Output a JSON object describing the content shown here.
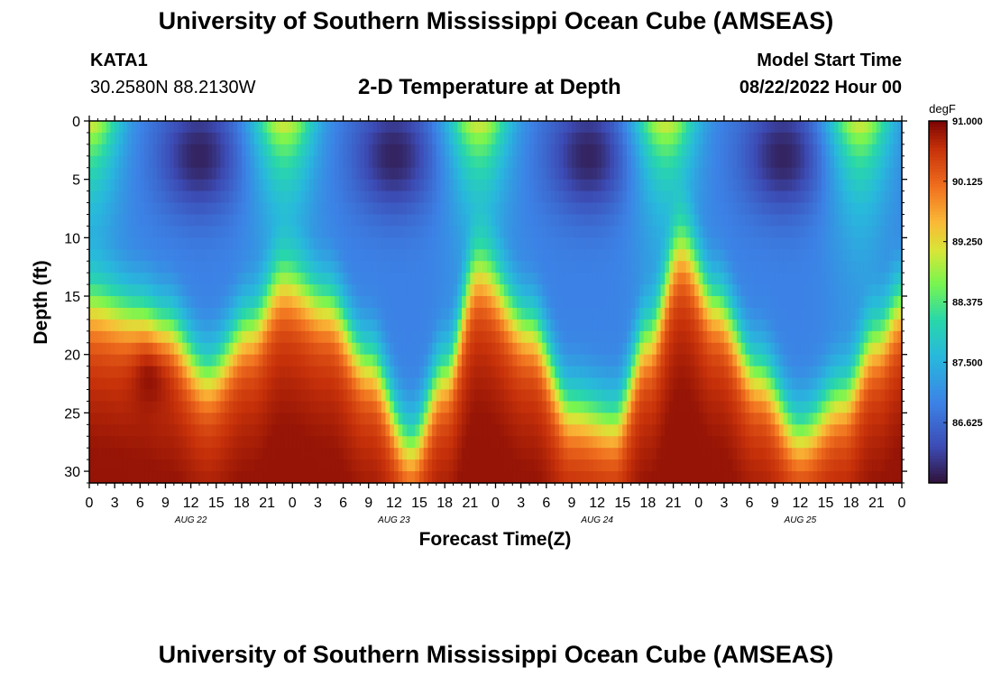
{
  "header": {
    "title": "University of Southern Mississippi Ocean Cube (AMSEAS)",
    "station": "KATA1",
    "coords": "30.2580N  88.2130W",
    "subtitle": "2-D Temperature at Depth",
    "model_start_label": "Model Start Time",
    "model_start_value": "08/22/2022 Hour 00"
  },
  "footer": {
    "title": "University of Southern Mississippi Ocean Cube (AMSEAS)"
  },
  "chart_data": {
    "type": "heatmap",
    "title": "2-D Temperature at Depth",
    "xlabel": "Forecast Time(Z)",
    "ylabel": "Depth (ft)",
    "x_range_hours": [
      0,
      96
    ],
    "x_tick_step_hours": 3,
    "x_tick_labels": [
      "0",
      "3",
      "6",
      "9",
      "12",
      "15",
      "18",
      "21",
      "0",
      "3",
      "6",
      "9",
      "12",
      "15",
      "18",
      "21",
      "0",
      "3",
      "6",
      "9",
      "12",
      "15",
      "18",
      "21",
      "0",
      "3",
      "6",
      "9",
      "12",
      "15",
      "18",
      "21",
      "0"
    ],
    "day_labels": [
      {
        "label": "AUG 22",
        "hour": 12
      },
      {
        "label": "AUG 23",
        "hour": 36
      },
      {
        "label": "AUG 24",
        "hour": 60
      },
      {
        "label": "AUG 25",
        "hour": 84
      }
    ],
    "y_range_ft": [
      0,
      31
    ],
    "y_tick_labels": [
      "0",
      "5",
      "10",
      "15",
      "20",
      "25",
      "30"
    ],
    "y_tick_values": [
      0,
      5,
      10,
      15,
      20,
      25,
      30
    ],
    "colorbar": {
      "unit": "degF",
      "min": 85.75,
      "max": 91.0,
      "tick_labels": [
        "91.000",
        "90.125",
        "89.250",
        "88.375",
        "87.500",
        "86.625"
      ],
      "tick_values": [
        91.0,
        90.125,
        89.25,
        88.375,
        87.5,
        86.625
      ]
    },
    "thermocline_depth_ft_by_hour": [
      {
        "hour": 0,
        "depth": 16
      },
      {
        "hour": 6,
        "depth": 17
      },
      {
        "hour": 9,
        "depth": 18
      },
      {
        "hour": 14,
        "depth": 22
      },
      {
        "hour": 19,
        "depth": 18
      },
      {
        "hour": 23,
        "depth": 14
      },
      {
        "hour": 28,
        "depth": 16
      },
      {
        "hour": 33,
        "depth": 21
      },
      {
        "hour": 38,
        "depth": 28
      },
      {
        "hour": 42,
        "depth": 22
      },
      {
        "hour": 46,
        "depth": 13
      },
      {
        "hour": 52,
        "depth": 18
      },
      {
        "hour": 57,
        "depth": 25
      },
      {
        "hour": 62,
        "depth": 26
      },
      {
        "hour": 66,
        "depth": 19
      },
      {
        "hour": 70,
        "depth": 11
      },
      {
        "hour": 74,
        "depth": 16
      },
      {
        "hour": 79,
        "depth": 22
      },
      {
        "hour": 84,
        "depth": 27
      },
      {
        "hour": 89,
        "depth": 24
      },
      {
        "hour": 93,
        "depth": 19
      },
      {
        "hour": 96,
        "depth": 16
      }
    ],
    "surface_warm_hours": [
      0,
      23,
      46,
      68,
      91
    ],
    "surface_cold_hours": [
      13,
      36,
      59,
      82
    ],
    "subsurface_warm_pocket": {
      "hour": 7.5,
      "depth_ft": 21,
      "value": 90.3
    }
  }
}
